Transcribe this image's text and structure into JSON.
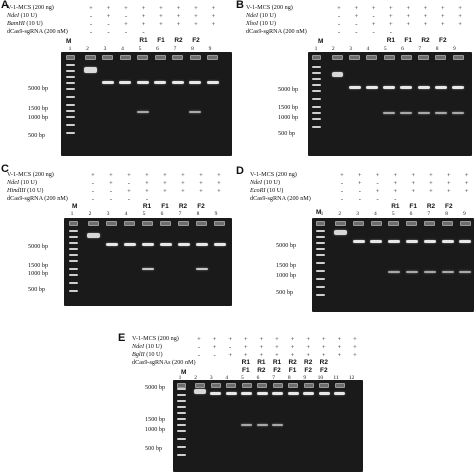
{
  "panels": [
    {
      "id": "A",
      "rows": [
        {
          "label": "V-1-MCS (200 ng)",
          "italic": false
        },
        {
          "label": "NdeI",
          "suffix": " (10 U)",
          "italic": true
        },
        {
          "label": "BamHI",
          "suffix": " (10 U)",
          "italic": true
        },
        {
          "label": "dCas9-sgRNA (200 nM)",
          "italic": false
        }
      ],
      "marker": "M",
      "lane_codes": [
        "",
        "",
        "",
        "R1",
        "F1",
        "R2",
        "F2"
      ],
      "lane_numbers": [
        "1",
        "2",
        "3",
        "4",
        "5",
        "6",
        "7",
        "8",
        "9"
      ],
      "symbols": [
        [
          "+",
          "+",
          "+",
          "+",
          "+",
          "+",
          "+",
          "+"
        ],
        [
          "-",
          "+",
          "-",
          "+",
          "+",
          "+",
          "+",
          "+"
        ],
        [
          "-",
          "-",
          "+",
          "+",
          "+",
          "+",
          "+",
          "+"
        ],
        [
          "-",
          "-",
          "-",
          "-",
          "",
          "",
          "",
          ""
        ]
      ],
      "bp_labels": [
        "5000 bp",
        "1500 bp",
        "1000 bp",
        "500 bp"
      ]
    },
    {
      "id": "B",
      "rows": [
        {
          "label": "V-1-MCS (200 ng)",
          "italic": false
        },
        {
          "label": "NdeI",
          "suffix": " (10 U)",
          "italic": true
        },
        {
          "label": "XhoI",
          "suffix": " (10 U)",
          "italic": true
        },
        {
          "label": "dCas9-sgRNA (200 nM)",
          "italic": false
        }
      ],
      "marker": "M",
      "lane_codes": [
        "",
        "",
        "",
        "R1",
        "F1",
        "R2",
        "F2"
      ],
      "lane_numbers": [
        "1",
        "2",
        "3",
        "4",
        "5",
        "6",
        "7",
        "8",
        "9"
      ],
      "symbols": [
        [
          "+",
          "+",
          "+",
          "+",
          "+",
          "+",
          "+",
          "+"
        ],
        [
          "-",
          "+",
          "-",
          "+",
          "+",
          "+",
          "+",
          "+"
        ],
        [
          "-",
          "-",
          "+",
          "+",
          "+",
          "+",
          "+",
          "+"
        ],
        [
          "-",
          "-",
          "-",
          "-",
          "",
          "",
          "",
          ""
        ]
      ],
      "bp_labels": [
        "5000 bp",
        "1500 bp",
        "1000 bp",
        "500 bp"
      ]
    },
    {
      "id": "C",
      "rows": [
        {
          "label": "V-1-MCS (200 ng)",
          "italic": false
        },
        {
          "label": "NdeI",
          "suffix": " (10 U)",
          "italic": true
        },
        {
          "label": "HindIII",
          "suffix": " (10 U)",
          "italic": true
        },
        {
          "label": "dCas9-sgRNA (200 nM)",
          "italic": false
        }
      ],
      "marker": "M",
      "lane_codes": [
        "",
        "",
        "",
        "R1",
        "F1",
        "R2",
        "F2"
      ],
      "lane_numbers": [
        "1",
        "2",
        "3",
        "4",
        "5",
        "6",
        "7",
        "8",
        "9"
      ],
      "symbols": [
        [
          "+",
          "+",
          "+",
          "+",
          "+",
          "+",
          "+",
          "+"
        ],
        [
          "-",
          "+",
          "-",
          "+",
          "+",
          "+",
          "+",
          "+"
        ],
        [
          "-",
          "-",
          "+",
          "+",
          "+",
          "+",
          "+",
          "+"
        ],
        [
          "-",
          "-",
          "-",
          "-",
          "",
          "",
          "",
          ""
        ]
      ],
      "bp_labels": [
        "5000 bp",
        "1500 bp",
        "1000 bp",
        "500 bp"
      ]
    },
    {
      "id": "D",
      "rows": [
        {
          "label": "V-1-MCS (200 ng)",
          "italic": false
        },
        {
          "label": "NdeI",
          "suffix": " (10 U)",
          "italic": true
        },
        {
          "label": "EcoRI",
          "suffix": " (10 U)",
          "italic": true
        },
        {
          "label": "dCas9-sgRNA (200 nM)",
          "italic": false
        }
      ],
      "marker": "M",
      "lane_codes": [
        "",
        "",
        "",
        "R1",
        "F1",
        "R2",
        "F2"
      ],
      "lane_numbers": [
        "1",
        "2",
        "3",
        "4",
        "5",
        "6",
        "7",
        "8",
        "9"
      ],
      "symbols": [
        [
          "+",
          "+",
          "+",
          "+",
          "+",
          "+",
          "+",
          "+"
        ],
        [
          "-",
          "+",
          "-",
          "+",
          "+",
          "+",
          "+",
          "+"
        ],
        [
          "-",
          "-",
          "+",
          "+",
          "+",
          "+",
          "+",
          "+"
        ],
        [
          "-",
          "-",
          "-",
          "-",
          "",
          "",
          "",
          ""
        ]
      ],
      "bp_labels": [
        "5000 bp",
        "1500 bp",
        "1000 bp",
        "500 bp"
      ]
    },
    {
      "id": "E",
      "rows": [
        {
          "label": "V-1-MCS (200 ng)",
          "italic": false
        },
        {
          "label": "NdeI",
          "suffix": " (10 U)",
          "italic": true
        },
        {
          "label": "BglII",
          "suffix": " (10 U)",
          "italic": true
        },
        {
          "label": "dCas9-sgRNAs (200 nM)",
          "italic": false
        }
      ],
      "marker": "M",
      "lane_codes_top": [
        "",
        "",
        "",
        "R1",
        "R1",
        "R1",
        "R2",
        "R2",
        "R2"
      ],
      "lane_codes_bottom": [
        "",
        "",
        "",
        "F1",
        "R2",
        "F2",
        "F1",
        "F2",
        "F2"
      ],
      "lane_numbers": [
        "1",
        "2",
        "3",
        "4",
        "5",
        "6",
        "7",
        "8",
        "9",
        "10",
        "11",
        "12"
      ],
      "symbols": [
        [
          "+",
          "+",
          "+",
          "+",
          "+",
          "+",
          "+",
          "+",
          "+",
          "+",
          "+"
        ],
        [
          "-",
          "+",
          "-",
          "+",
          "+",
          "+",
          "+",
          "+",
          "+",
          "+",
          "+"
        ],
        [
          "-",
          "-",
          "+",
          "+",
          "+",
          "+",
          "+",
          "+",
          "+",
          "+",
          "+"
        ]
      ],
      "bp_labels": [
        "5000 bp",
        "1500 bp",
        "1000 bp",
        "500 bp"
      ]
    }
  ]
}
